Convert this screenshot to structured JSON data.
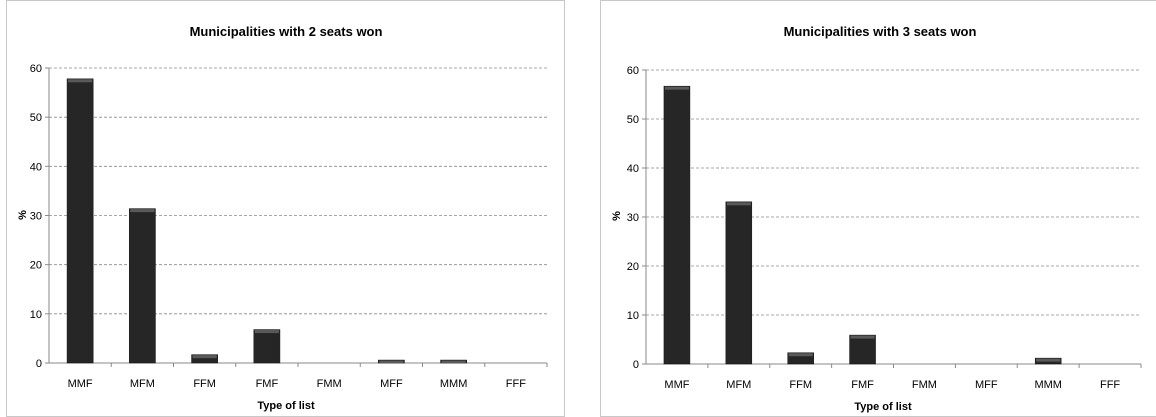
{
  "chart_data": [
    {
      "type": "bar",
      "title": "Municipalities with 2 seats won",
      "xlabel": "Type of list",
      "ylabel": "%",
      "categories": [
        "MMF",
        "MFM",
        "FFM",
        "FMF",
        "FMM",
        "MFF",
        "MMM",
        "FFF"
      ],
      "values": [
        57.8,
        31.4,
        1.7,
        6.8,
        0,
        0.6,
        0.6,
        0
      ],
      "ylim": [
        0,
        60
      ],
      "yticks": [
        0,
        10,
        20,
        30,
        40,
        50,
        60
      ],
      "grid": true,
      "colors": {
        "bar": "#262626"
      }
    },
    {
      "type": "bar",
      "title": "Municipalities with 3 seats won",
      "xlabel": "Type of list",
      "ylabel": "%",
      "categories": [
        "MMF",
        "MFM",
        "FFM",
        "FMF",
        "FMM",
        "MFF",
        "MMM",
        "FFF"
      ],
      "values": [
        56.7,
        33.1,
        2.3,
        5.9,
        0,
        0,
        1.2,
        0
      ],
      "ylim": [
        0,
        60
      ],
      "yticks": [
        0,
        10,
        20,
        30,
        40,
        50,
        60
      ],
      "grid": true,
      "colors": {
        "bar": "#262626"
      }
    }
  ]
}
